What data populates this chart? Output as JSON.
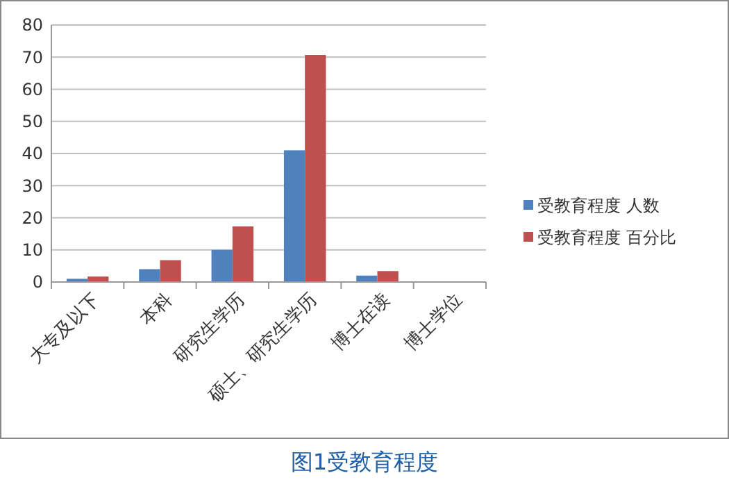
{
  "chart_data": {
    "type": "bar",
    "title": "图1受教育程度",
    "categories": [
      "大专及以下",
      "本科",
      "研究生学历",
      "硕士、研究生学历",
      "博士在读",
      "博士学位"
    ],
    "series": [
      {
        "name": "受教育程度 人数",
        "color": "#4f81bd",
        "values": [
          1,
          4,
          10,
          41,
          2,
          0
        ]
      },
      {
        "name": "受教育程度 百分比",
        "color": "#c0504d",
        "values": [
          1.7,
          6.8,
          17.3,
          70.7,
          3.4,
          0
        ]
      }
    ],
    "ylim": [
      0,
      80
    ],
    "yticks": [
      0,
      10,
      20,
      30,
      40,
      50,
      60,
      70,
      80
    ],
    "grid": "y",
    "legend": "right"
  }
}
